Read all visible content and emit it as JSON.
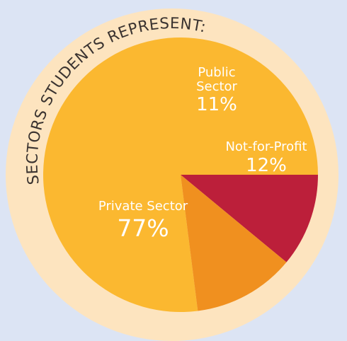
{
  "chart_data": {
    "type": "pie",
    "title": "SECTORS STUDENTS REPRESENT:",
    "slices": [
      {
        "name": "Private Sector",
        "value": 77,
        "label": "77%",
        "color": "#fbb830"
      },
      {
        "name": "Public Sector",
        "value": 11,
        "label": "11%",
        "color": "#bc1f3a"
      },
      {
        "name": "Not-for-Profit",
        "value": 12,
        "label": "12%",
        "color": "#f0901f"
      }
    ],
    "label_lines": {
      "private": [
        "Private Sector"
      ],
      "public": [
        "Public",
        "Sector"
      ],
      "nonprofit": [
        "Not-for-Profit"
      ]
    },
    "ring_color": "#fde4bf",
    "background_color": "#dce4f4"
  }
}
